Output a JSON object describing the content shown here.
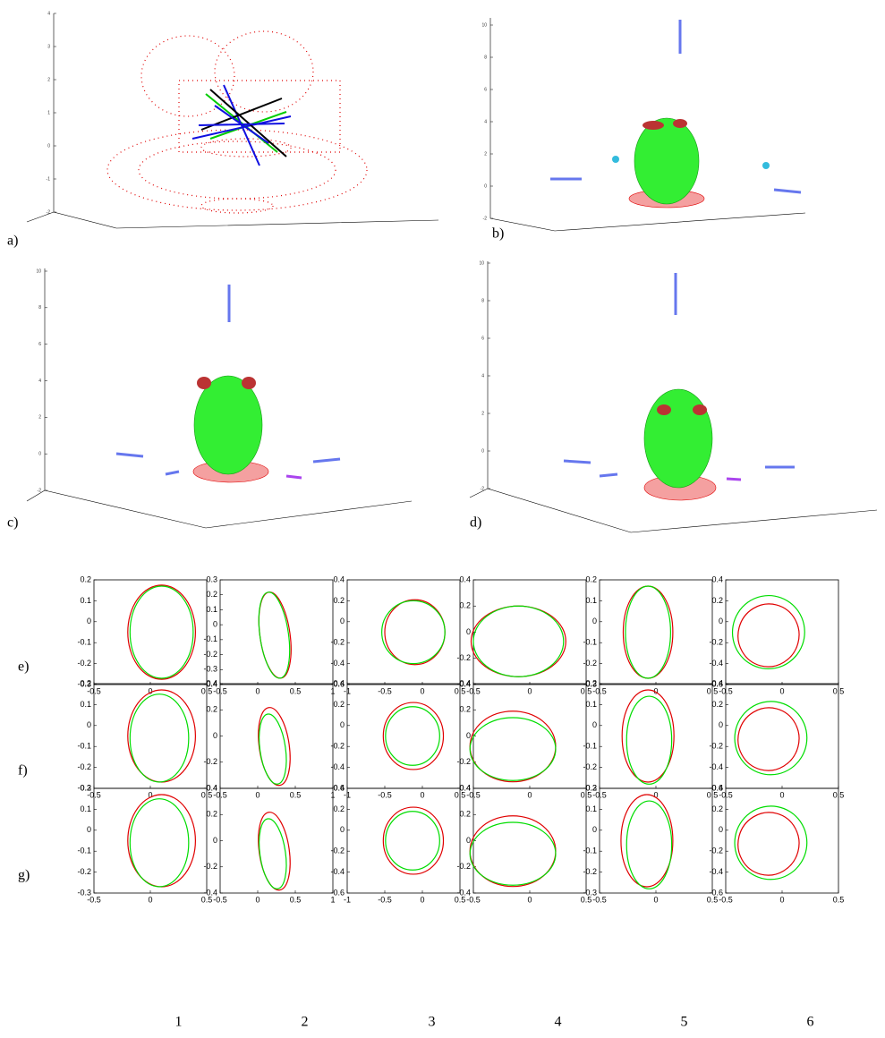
{
  "figure": {
    "panels_3d": [
      {
        "label": "a)",
        "zlim": [
          -2,
          4
        ],
        "zticks": [
          -2,
          -1,
          0,
          1,
          2,
          3,
          4
        ]
      },
      {
        "label": "b)",
        "zlim": [
          -2,
          10
        ],
        "zticks": [
          -2,
          0,
          2,
          4,
          6,
          8,
          10
        ]
      },
      {
        "label": "c)",
        "zlim": [
          -2,
          10
        ],
        "zticks": [
          -2,
          0,
          2,
          4,
          6,
          8,
          10
        ]
      },
      {
        "label": "d)",
        "zlim": [
          -2,
          10
        ],
        "zticks": [
          -2,
          0,
          2,
          4,
          6,
          8,
          10
        ]
      }
    ],
    "rows": [
      {
        "label": "e)",
        "plots": [
          {
            "xlim": [
              -0.5,
              0.5
            ],
            "xticks": [
              -0.5,
              0,
              0.5
            ],
            "ylim": [
              -0.3,
              0.2
            ],
            "yticks": [
              -0.3,
              -0.2,
              -0.1,
              0,
              0.1,
              0.2
            ],
            "ellipses": [
              {
                "color": "#e00000",
                "values": [
                  0.1,
                  -0.05,
                  0.3,
                  0.225,
                  0
                ]
              },
              {
                "color": "#00dd00",
                "values": [
                  0.1,
                  -0.05,
                  0.28,
                  0.22,
                  0
                ]
              }
            ]
          },
          {
            "xlim": [
              -0.5,
              1
            ],
            "xticks": [
              -0.5,
              0,
              0.5,
              1
            ],
            "ylim": [
              -0.4,
              0.3
            ],
            "yticks": [
              -0.4,
              -0.3,
              -0.2,
              -0.1,
              0,
              0.1,
              0.2,
              0.3
            ],
            "ellipses": [
              {
                "color": "#e00000",
                "values": [
                  0.23,
                  -0.07,
                  0.2,
                  0.29,
                  -8
                ]
              },
              {
                "color": "#00dd00",
                "values": [
                  0.22,
                  -0.07,
                  0.19,
                  0.29,
                  -8
                ]
              }
            ]
          },
          {
            "xlim": [
              -1,
              0.5
            ],
            "xticks": [
              -1,
              -0.5,
              0,
              0.5
            ],
            "ylim": [
              -0.6,
              0.4
            ],
            "yticks": [
              -0.6,
              -0.4,
              -0.2,
              0,
              0.2,
              0.4
            ],
            "ellipses": [
              {
                "color": "#e00000",
                "values": [
                  -0.1,
                  -0.1,
                  0.4,
                  0.31,
                  0
                ]
              },
              {
                "color": "#00dd00",
                "values": [
                  -0.12,
                  -0.1,
                  0.42,
                  0.3,
                  0
                ]
              }
            ]
          },
          {
            "xlim": [
              -0.5,
              0.5
            ],
            "xticks": [
              -0.5,
              0,
              0.5
            ],
            "ylim": [
              -0.4,
              0.4
            ],
            "yticks": [
              -0.4,
              -0.2,
              0,
              0.2,
              0.4
            ],
            "ellipses": [
              {
                "color": "#e00000",
                "values": [
                  -0.1,
                  -0.07,
                  0.42,
                  0.27,
                  0
                ]
              },
              {
                "color": "#00dd00",
                "values": [
                  -0.1,
                  -0.07,
                  0.4,
                  0.27,
                  0
                ]
              }
            ]
          },
          {
            "xlim": [
              -0.5,
              0.5
            ],
            "xticks": [
              -0.5,
              0,
              0.5
            ],
            "ylim": [
              -0.3,
              0.2
            ],
            "yticks": [
              -0.3,
              -0.2,
              -0.1,
              0,
              0.1,
              0.2
            ],
            "ellipses": [
              {
                "color": "#e00000",
                "values": [
                  -0.07,
                  -0.05,
                  0.22,
                  0.22,
                  0
                ]
              },
              {
                "color": "#00dd00",
                "values": [
                  -0.07,
                  -0.05,
                  0.2,
                  0.22,
                  0
                ]
              }
            ]
          },
          {
            "xlim": [
              -0.5,
              0.5
            ],
            "xticks": [
              -0.5,
              0,
              0.5
            ],
            "ylim": [
              -0.6,
              0.4
            ],
            "yticks": [
              -0.6,
              -0.4,
              -0.2,
              0,
              0.2,
              0.4
            ],
            "ellipses": [
              {
                "color": "#e00000",
                "values": [
                  -0.12,
                  -0.13,
                  0.27,
                  0.3,
                  15
                ]
              },
              {
                "color": "#00dd00",
                "values": [
                  -0.12,
                  -0.1,
                  0.32,
                  0.35,
                  10
                ]
              }
            ]
          }
        ]
      },
      {
        "label": "f)",
        "plots": [
          {
            "xlim": [
              -0.5,
              0.5
            ],
            "xticks": [
              -0.5,
              0,
              0.5
            ],
            "ylim": [
              -0.3,
              0.2
            ],
            "yticks": [
              -0.3,
              -0.2,
              -0.1,
              0,
              0.1,
              0.2
            ],
            "ellipses": [
              {
                "color": "#e00000",
                "values": [
                  0.1,
                  -0.05,
                  0.3,
                  0.22,
                  0
                ]
              },
              {
                "color": "#00dd00",
                "values": [
                  0.08,
                  -0.06,
                  0.26,
                  0.21,
                  0
                ]
              }
            ]
          },
          {
            "xlim": [
              -0.5,
              1
            ],
            "xticks": [
              -0.5,
              0,
              0.5,
              1
            ],
            "ylim": [
              -0.4,
              0.4
            ],
            "yticks": [
              -0.4,
              -0.2,
              0,
              0.2,
              0.4
            ],
            "ellipses": [
              {
                "color": "#e00000",
                "values": [
                  0.22,
                  -0.08,
                  0.2,
                  0.3,
                  -8
                ]
              },
              {
                "color": "#00dd00",
                "values": [
                  0.2,
                  -0.1,
                  0.17,
                  0.27,
                  -8
                ]
              }
            ]
          },
          {
            "xlim": [
              -1,
              0.5
            ],
            "xticks": [
              -1,
              -0.5,
              0,
              0.5
            ],
            "ylim": [
              -0.6,
              0.4
            ],
            "yticks": [
              -0.6,
              -0.4,
              -0.2,
              0,
              0.2,
              0.4
            ],
            "ellipses": [
              {
                "color": "#e00000",
                "values": [
                  -0.12,
                  -0.1,
                  0.4,
                  0.32,
                  0
                ]
              },
              {
                "color": "#00dd00",
                "values": [
                  -0.13,
                  -0.1,
                  0.36,
                  0.28,
                  0
                ]
              }
            ]
          },
          {
            "xlim": [
              -0.5,
              0.5
            ],
            "xticks": [
              -0.5,
              0,
              0.5
            ],
            "ylim": [
              -0.4,
              0.4
            ],
            "yticks": [
              -0.4,
              -0.2,
              0,
              0.2,
              0.4
            ],
            "ellipses": [
              {
                "color": "#e00000",
                "values": [
                  -0.15,
                  -0.08,
                  0.38,
                  0.27,
                  0
                ]
              },
              {
                "color": "#00dd00",
                "values": [
                  -0.15,
                  -0.1,
                  0.38,
                  0.24,
                  0
                ]
              }
            ]
          },
          {
            "xlim": [
              -0.5,
              0.5
            ],
            "xticks": [
              -0.5,
              0,
              0.5
            ],
            "ylim": [
              -0.3,
              0.2
            ],
            "yticks": [
              -0.3,
              -0.2,
              -0.1,
              0,
              0.1,
              0.2
            ],
            "ellipses": [
              {
                "color": "#e00000",
                "values": [
                  -0.07,
                  -0.05,
                  0.23,
                  0.22,
                  0
                ]
              },
              {
                "color": "#00dd00",
                "values": [
                  -0.06,
                  -0.07,
                  0.2,
                  0.21,
                  0
                ]
              }
            ]
          },
          {
            "xlim": [
              -0.5,
              0.5
            ],
            "xticks": [
              -0.5,
              0,
              0.5
            ],
            "ylim": [
              -0.6,
              0.4
            ],
            "yticks": [
              -0.6,
              -0.4,
              -0.2,
              0,
              0.2,
              0.4
            ],
            "ellipses": [
              {
                "color": "#e00000",
                "values": [
                  -0.12,
                  -0.13,
                  0.27,
                  0.3,
                  15
                ]
              },
              {
                "color": "#00dd00",
                "values": [
                  -0.1,
                  -0.12,
                  0.32,
                  0.35,
                  10
                ]
              }
            ]
          }
        ]
      },
      {
        "label": "g)",
        "plots": [
          {
            "xlim": [
              -0.5,
              0.5
            ],
            "xticks": [
              -0.5,
              0,
              0.5
            ],
            "ylim": [
              -0.3,
              0.2
            ],
            "yticks": [
              -0.3,
              -0.2,
              -0.1,
              0,
              0.1,
              0.2
            ],
            "ellipses": [
              {
                "color": "#e00000",
                "values": [
                  0.1,
                  -0.05,
                  0.3,
                  0.22,
                  0
                ]
              },
              {
                "color": "#00dd00",
                "values": [
                  0.08,
                  -0.06,
                  0.26,
                  0.21,
                  0
                ]
              }
            ]
          },
          {
            "xlim": [
              -0.5,
              1
            ],
            "xticks": [
              -0.5,
              0,
              0.5,
              1
            ],
            "ylim": [
              -0.4,
              0.4
            ],
            "yticks": [
              -0.4,
              -0.2,
              0,
              0.2,
              0.4
            ],
            "ellipses": [
              {
                "color": "#e00000",
                "values": [
                  0.22,
                  -0.08,
                  0.2,
                  0.3,
                  -8
                ]
              },
              {
                "color": "#00dd00",
                "values": [
                  0.2,
                  -0.1,
                  0.17,
                  0.27,
                  -8
                ]
              }
            ]
          },
          {
            "xlim": [
              -1,
              0.5
            ],
            "xticks": [
              -1,
              -0.5,
              0,
              0.5
            ],
            "ylim": [
              -0.6,
              0.4
            ],
            "yticks": [
              -0.6,
              -0.4,
              -0.2,
              0,
              0.2,
              0.4
            ],
            "ellipses": [
              {
                "color": "#e00000",
                "values": [
                  -0.12,
                  -0.1,
                  0.4,
                  0.32,
                  0
                ]
              },
              {
                "color": "#00dd00",
                "values": [
                  -0.13,
                  -0.1,
                  0.36,
                  0.28,
                  0
                ]
              }
            ]
          },
          {
            "xlim": [
              -0.5,
              0.5
            ],
            "xticks": [
              -0.5,
              0,
              0.5
            ],
            "ylim": [
              -0.4,
              0.4
            ],
            "yticks": [
              -0.4,
              -0.2,
              0,
              0.2,
              0.4
            ],
            "ellipses": [
              {
                "color": "#e00000",
                "values": [
                  -0.15,
                  -0.08,
                  0.38,
                  0.27,
                  0
                ]
              },
              {
                "color": "#00dd00",
                "values": [
                  -0.15,
                  -0.1,
                  0.38,
                  0.24,
                  0
                ]
              }
            ]
          },
          {
            "xlim": [
              -0.5,
              0.5
            ],
            "xticks": [
              -0.5,
              0,
              0.5
            ],
            "ylim": [
              -0.3,
              0.2
            ],
            "yticks": [
              -0.3,
              -0.2,
              -0.1,
              0,
              0.1,
              0.2
            ],
            "ellipses": [
              {
                "color": "#e00000",
                "values": [
                  -0.08,
                  -0.05,
                  0.23,
                  0.22,
                  0
                ]
              },
              {
                "color": "#00dd00",
                "values": [
                  -0.06,
                  -0.07,
                  0.2,
                  0.21,
                  0
                ]
              }
            ]
          },
          {
            "xlim": [
              -0.5,
              0.5
            ],
            "xticks": [
              -0.5,
              0,
              0.5
            ],
            "ylim": [
              -0.6,
              0.4
            ],
            "yticks": [
              -0.6,
              -0.4,
              -0.2,
              0,
              0.2,
              0.4
            ],
            "ellipses": [
              {
                "color": "#e00000",
                "values": [
                  -0.12,
                  -0.13,
                  0.27,
                  0.3,
                  15
                ]
              },
              {
                "color": "#00dd00",
                "values": [
                  -0.1,
                  -0.12,
                  0.32,
                  0.35,
                  10
                ]
              }
            ]
          }
        ]
      }
    ],
    "columns": [
      "1",
      "2",
      "3",
      "4",
      "5",
      "6"
    ]
  }
}
